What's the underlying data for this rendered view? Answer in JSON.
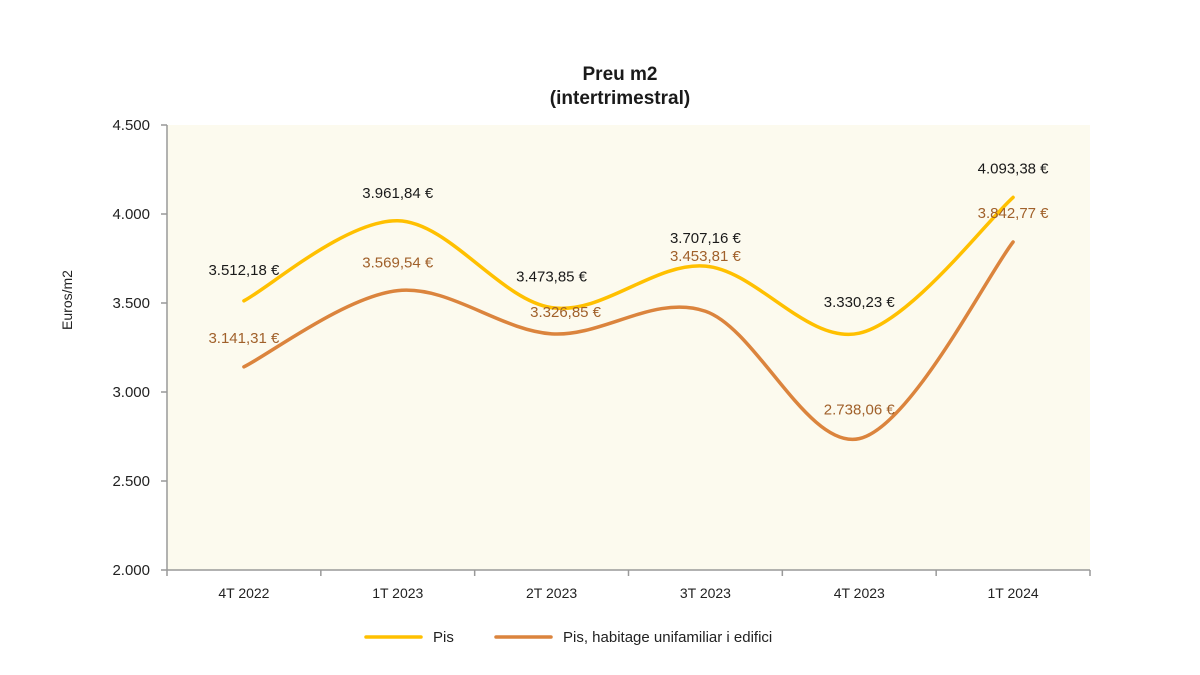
{
  "chart_data": {
    "type": "line",
    "title": "Preu m2",
    "subtitle": "(intertrimestral)",
    "xlabel": "",
    "ylabel": "Euros/m2",
    "ylim": [
      2000,
      4500
    ],
    "yticks": [
      2000,
      2500,
      3000,
      3500,
      4000,
      4500
    ],
    "ytick_labels": [
      "2.000",
      "2.500",
      "3.000",
      "3.500",
      "4.000",
      "4.500"
    ],
    "categories": [
      "4T 2022",
      "1T 2023",
      "2T 2023",
      "3T 2023",
      "4T 2023",
      "1T 2024"
    ],
    "smoothed": true,
    "grid": false,
    "legend_position": "bottom",
    "plot_background": "#fcfaee",
    "series": [
      {
        "name": "Pis",
        "color": "#ffc000",
        "label_color": "#1a1a1a",
        "values": [
          3512.18,
          3961.84,
          3473.85,
          3707.16,
          3330.23,
          4093.38
        ],
        "labels": [
          "3.512,18 €",
          "3.961,84 €",
          "3.473,85 €",
          "3.707,16 €",
          "3.330,23 €",
          "4.093,38 €"
        ]
      },
      {
        "name": "Pis, habitage unifamiliar i edifici",
        "color": "#db843d",
        "label_color": "#a0602a",
        "values": [
          3141.31,
          3569.54,
          3326.85,
          3453.81,
          2738.06,
          3842.77
        ],
        "labels": [
          "3.141,31 €",
          "3.569,54 €",
          "3.326,85 €",
          "3.453,81 €",
          "2.738,06 €",
          "3.842,77 €"
        ]
      }
    ]
  }
}
